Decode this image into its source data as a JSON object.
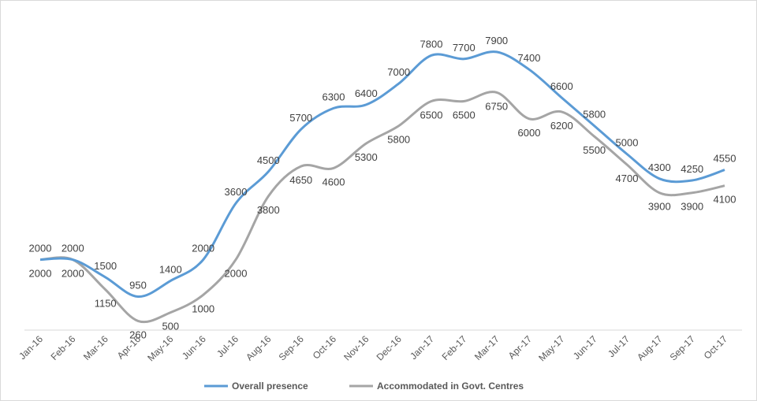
{
  "chart_data": {
    "type": "line",
    "title": "",
    "xlabel": "",
    "ylabel": "",
    "ylim": [
      0,
      9000
    ],
    "grid": false,
    "legend_position": "bottom",
    "categories": [
      "Jan-16",
      "Feb-16",
      "Mar-16",
      "Apr-16",
      "May-16",
      "Jun-16",
      "Jul-16",
      "Aug-16",
      "Sep-16",
      "Oct-16",
      "Nov-16",
      "Dec-16",
      "Jan-17",
      "Feb-17",
      "Mar-17",
      "Apr-17",
      "May-17",
      "Jun-17",
      "Jul-17",
      "Aug-17",
      "Sep-17",
      "Oct-17"
    ],
    "series": [
      {
        "name": "Overall presence",
        "color": "#5b9bd5",
        "values": [
          2000,
          2000,
          1500,
          950,
          1400,
          2000,
          3600,
          4500,
          5700,
          6300,
          6400,
          7000,
          7800,
          7700,
          7900,
          7400,
          6600,
          5800,
          5000,
          4300,
          4250,
          4550
        ]
      },
      {
        "name": "Accommodated in Govt. Centres",
        "color": "#a5a5a5",
        "values": [
          2000,
          2000,
          1150,
          260,
          500,
          1000,
          2000,
          3800,
          4650,
          4600,
          5300,
          5800,
          6500,
          6500,
          6750,
          6000,
          6200,
          5500,
          4700,
          3900,
          3900,
          4100
        ]
      }
    ]
  }
}
